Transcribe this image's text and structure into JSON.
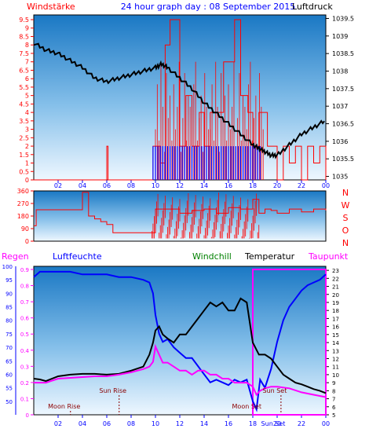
{
  "chart_data": [
    {
      "type": "line",
      "panel": "wind-pressure",
      "title": "24 hour graph day : 08 September 2015",
      "left_label": "Windstärke",
      "right_label": "Luftdruck",
      "x_ticks": [
        "02",
        "04",
        "06",
        "08",
        "10",
        "12",
        "14",
        "16",
        "18",
        "20",
        "22",
        "00"
      ],
      "y_left_ticks": [
        "0",
        "0.5",
        "1",
        "1.5",
        "2",
        "2.5",
        "3",
        "3.5",
        "4",
        "4.5",
        "5",
        "5.5",
        "6",
        "6.5",
        "7",
        "7.5",
        "8",
        "8.5",
        "9",
        "9.5"
      ],
      "y_left_range": [
        0,
        9.5
      ],
      "y_right_ticks": [
        "1035",
        "1035.5",
        "1036",
        "1036.5",
        "1037",
        "1037.5",
        "1038",
        "1038.5",
        "1039",
        "1039.5"
      ],
      "y_right_range": [
        1034.9,
        1039.6
      ],
      "series": [
        {
          "name": "Windstärke",
          "color": "#ff0000",
          "hours": [
            0,
            5.9,
            6.0,
            6.1,
            9.5,
            9.8,
            10.4,
            10.8,
            11.2,
            12.0,
            12.5,
            13.0,
            13.6,
            14.0,
            14.5,
            15.0,
            15.6,
            16.0,
            16.5,
            17.0,
            17.6,
            18.0,
            18.5,
            19.2,
            20.0,
            20.5,
            21.0,
            21.5,
            22.0,
            22.5,
            23.0,
            23.5,
            24
          ],
          "values": [
            0,
            0,
            2,
            0,
            0,
            2,
            1,
            8,
            9.5,
            2,
            5,
            2,
            4,
            2,
            4,
            4,
            7,
            7,
            9.5,
            5,
            4,
            2,
            4,
            2,
            0,
            2,
            1,
            2,
            0,
            2,
            1,
            2,
            0
          ]
        },
        {
          "name": "Luftdruck",
          "color": "#000000",
          "hours": [
            0,
            1,
            2,
            3,
            4,
            5,
            6,
            7,
            8,
            9,
            10,
            10.5,
            11,
            12,
            13,
            14,
            15,
            16,
            17,
            18,
            18.5,
            19,
            19.5,
            20,
            21,
            22,
            23,
            24
          ],
          "values": [
            1038.8,
            1038.6,
            1038.5,
            1038.3,
            1038.1,
            1037.8,
            1037.7,
            1037.8,
            1037.9,
            1038.0,
            1038.1,
            1038.2,
            1038.1,
            1037.8,
            1037.5,
            1037.1,
            1036.8,
            1036.5,
            1036.2,
            1035.9,
            1035.8,
            1035.7,
            1035.6,
            1035.6,
            1035.9,
            1036.2,
            1036.4,
            1036.6
          ]
        }
      ]
    },
    {
      "type": "line",
      "panel": "wind-direction",
      "y_left_ticks": [
        "0",
        "90",
        "180",
        "270",
        "360"
      ],
      "y_left_range": [
        0,
        360
      ],
      "y_right_labels": [
        "N",
        "W",
        "S",
        "O",
        "N"
      ],
      "series": [
        {
          "name": "Windrichtung",
          "color": "#ff0000",
          "hours": [
            0,
            0.2,
            3.9,
            4.0,
            4.5,
            5.0,
            5.5,
            6.0,
            6.5,
            9.5,
            10.0,
            11.0,
            12.0,
            13.0,
            14.0,
            15.0,
            16.0,
            17.0,
            18.0,
            18.5,
            19.0,
            19.5,
            20.0,
            21.0,
            22.0,
            23.0,
            24
          ],
          "values": [
            110,
            225,
            225,
            350,
            180,
            160,
            140,
            120,
            60,
            60,
            230,
            230,
            200,
            220,
            230,
            200,
            240,
            230,
            300,
            200,
            230,
            220,
            200,
            230,
            210,
            230,
            220
          ]
        }
      ]
    },
    {
      "type": "line",
      "panel": "humidity-temperature",
      "left_labels": [
        "Regen",
        "Luftfeuchte"
      ],
      "right_labels": [
        "Windchill",
        "Temperatur",
        "Taupunkt"
      ],
      "x_ticks": [
        "02",
        "04",
        "06",
        "08",
        "10",
        "12",
        "14",
        "16",
        "18",
        "20",
        "22",
        "00"
      ],
      "y_rain_ticks": [
        "0",
        "0.1",
        "0.2",
        "0.3",
        "0.4",
        "0.5",
        "0.6",
        "0.7",
        "0.8",
        "0.9"
      ],
      "y_rain_range": [
        0,
        0.9
      ],
      "y_humidity_ticks": [
        "50",
        "55",
        "60",
        "65",
        "70",
        "75",
        "80",
        "85",
        "90",
        "95",
        "100"
      ],
      "y_humidity_range": [
        45,
        100
      ],
      "y_temp_ticks": [
        "5",
        "6",
        "7",
        "8",
        "9",
        "10",
        "11",
        "12",
        "13",
        "14",
        "15",
        "16",
        "17",
        "18",
        "19",
        "20",
        "21",
        "22",
        "23"
      ],
      "y_temp_range": [
        5,
        23.5
      ],
      "series": [
        {
          "name": "Luftfeuchte",
          "color": "#0000ff",
          "hours": [
            0,
            0.5,
            1,
            2,
            3,
            4,
            5,
            6,
            7,
            8,
            9,
            9.5,
            9.8,
            10.0,
            10.3,
            10.6,
            11,
            11.5,
            12,
            12.5,
            13,
            14,
            14.5,
            15,
            16,
            16.5,
            17,
            17.5,
            18,
            18.3,
            18.6,
            19,
            19.5,
            20,
            20.5,
            21,
            21.5,
            22,
            22.5,
            23,
            23.5,
            24
          ],
          "values": [
            96,
            98,
            98,
            98,
            98,
            97,
            97,
            97,
            96,
            96,
            95,
            94,
            90,
            82,
            75,
            72,
            73,
            70,
            68,
            66,
            66,
            60,
            57,
            58,
            56,
            58,
            57,
            58,
            50,
            47,
            58,
            55,
            62,
            72,
            80,
            85,
            88,
            91,
            93,
            94,
            95,
            97
          ]
        },
        {
          "name": "Temperatur",
          "color": "#000000",
          "hours": [
            0,
            0.5,
            1,
            2,
            3,
            4,
            5,
            6,
            7,
            8,
            9,
            9.5,
            9.8,
            10.0,
            10.3,
            10.6,
            11,
            11.5,
            12,
            12.5,
            13,
            13.5,
            14,
            14.5,
            15,
            15.5,
            16,
            16.5,
            17,
            17.5,
            18,
            18.5,
            19,
            19.5,
            20,
            20.5,
            21,
            21.5,
            22,
            22.5,
            23,
            23.5,
            24
          ],
          "values": [
            9.5,
            9.4,
            9.2,
            9.8,
            10.0,
            10.1,
            10.1,
            10.0,
            10.1,
            10.5,
            11.0,
            12.5,
            14.0,
            15.5,
            16.0,
            15.0,
            14.5,
            14.0,
            15.0,
            15.0,
            16.0,
            17.0,
            18.0,
            19.0,
            18.5,
            19.0,
            18.0,
            18.0,
            19.5,
            19.0,
            14.0,
            12.5,
            12.5,
            12.0,
            11.0,
            10.0,
            9.5,
            9.0,
            8.8,
            8.5,
            8.2,
            8.0,
            7.7
          ]
        },
        {
          "name": "Taupunkt",
          "color": "#ff00ff",
          "hours": [
            0,
            0.5,
            1,
            2,
            3,
            4,
            5,
            6,
            7,
            8,
            9,
            9.5,
            9.8,
            10.0,
            10.3,
            10.6,
            11,
            11.5,
            12,
            12.5,
            13,
            13.5,
            14,
            14.5,
            15,
            15.5,
            16,
            16.5,
            17,
            17.5,
            18,
            18.3,
            18.6,
            19,
            19.5,
            20,
            21,
            22,
            23,
            24
          ],
          "values": [
            9.0,
            9.0,
            9.0,
            9.5,
            9.6,
            9.7,
            9.8,
            9.8,
            10.0,
            10.3,
            10.7,
            11.0,
            11.6,
            13.5,
            12.5,
            11.5,
            11.5,
            11.0,
            10.5,
            10.5,
            10.0,
            10.5,
            10.5,
            10.0,
            10.0,
            9.5,
            9.5,
            9.0,
            9.0,
            9.0,
            8.5,
            7.5,
            8.0,
            8.3,
            8.5,
            8.5,
            8.3,
            7.8,
            7.5,
            7.2
          ]
        }
      ],
      "rain": {
        "name": "Regen",
        "color": "#ff00ff",
        "start_hour": 18.0,
        "end_hour": 24.0,
        "value": 0.9
      },
      "astro_labels": [
        {
          "label": "Moon Rise",
          "hour": 2.5,
          "level": "low"
        },
        {
          "label": "Sun Rise",
          "hour": 6.5,
          "level": "high"
        },
        {
          "label": "Moon Set",
          "hour": 17.5,
          "level": "low"
        },
        {
          "label": "Sun Set",
          "hour": 19.8,
          "level": "high"
        }
      ],
      "bottom_extra_label": "Sun Set"
    }
  ],
  "colors": {
    "red": "#ff0000",
    "blue": "#0000ff",
    "magenta": "#ff00ff",
    "green": "#008000",
    "black": "#000000",
    "axis_blue": "#0000ff",
    "panel_top": "#1a7cc8",
    "panel_bottom": "#e8f4ff"
  }
}
